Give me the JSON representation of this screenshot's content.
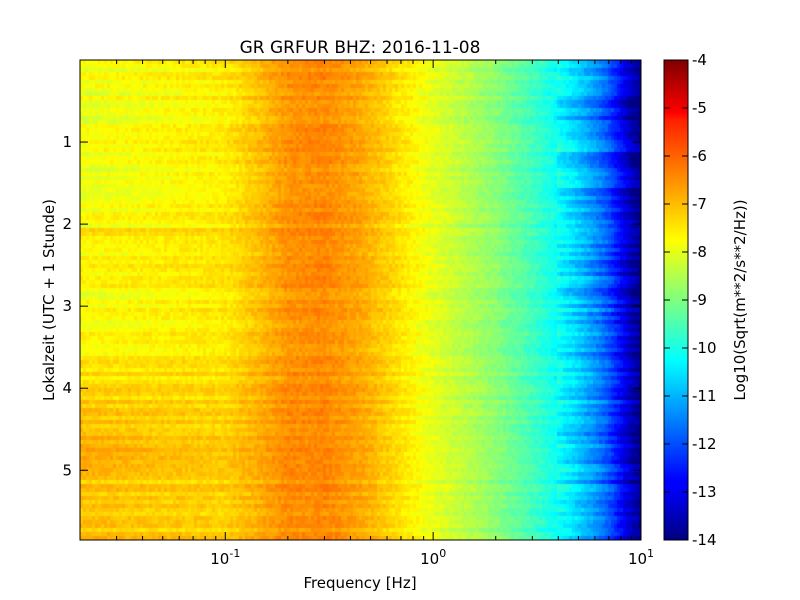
{
  "chart_data": {
    "type": "heatmap",
    "title": "GR GRFUR BHZ: 2016-11-08",
    "xlabel": "Frequency [Hz]",
    "ylabel": "Lokalzeit (UTC + 1 Stunde)",
    "colorbar_label": "Log10(Sqrt(m**2/s**2/Hz))",
    "x_scale": "log",
    "xlim": [
      0.02,
      10
    ],
    "ylim": [
      5.85,
      0
    ],
    "x_ticks": [
      {
        "value": 0.1,
        "base": "10",
        "exp": "-1"
      },
      {
        "value": 1,
        "base": "10",
        "exp": "0"
      },
      {
        "value": 10,
        "base": "10",
        "exp": "1"
      }
    ],
    "y_ticks": [
      "1",
      "2",
      "3",
      "4",
      "5"
    ],
    "y_tick_values": [
      1,
      2,
      3,
      4,
      5
    ],
    "color_range": [
      -14,
      -4
    ],
    "colorbar_ticks": [
      "-4",
      "-5",
      "-6",
      "-7",
      "-8",
      "-9",
      "-10",
      "-11",
      "-12",
      "-13",
      "-14"
    ],
    "colorbar_tick_values": [
      -4,
      -5,
      -6,
      -7,
      -8,
      -9,
      -10,
      -11,
      -12,
      -13,
      -14
    ],
    "colormap": "jet",
    "spectrum_profile": {
      "freq": [
        0.02,
        0.04,
        0.06,
        0.1,
        0.14,
        0.2,
        0.3,
        0.45,
        0.6,
        0.8,
        1.0,
        1.5,
        2.0,
        3.0,
        4.0,
        5.0,
        6.0,
        7.0,
        8.0,
        9.0,
        10.0
      ],
      "value": [
        -7.9,
        -7.8,
        -7.7,
        -7.6,
        -7.2,
        -6.7,
        -6.6,
        -6.9,
        -7.3,
        -7.7,
        -8.0,
        -8.5,
        -8.9,
        -9.6,
        -10.2,
        -10.8,
        -11.4,
        -12.0,
        -12.8,
        -13.5,
        -14.0
      ]
    },
    "time_profile": {
      "hours": [
        0,
        1,
        2,
        2.05,
        2.2,
        3,
        3.5,
        4,
        4.5,
        4.8,
        5.2,
        5.85
      ],
      "low_freq_offset": [
        0,
        0,
        0,
        0.4,
        0.2,
        0.1,
        0.3,
        0.5,
        0.8,
        1.0,
        0.7,
        0.8
      ]
    }
  }
}
